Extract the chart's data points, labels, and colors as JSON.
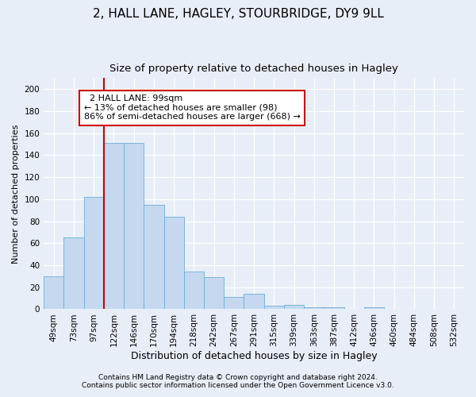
{
  "title1": "2, HALL LANE, HAGLEY, STOURBRIDGE, DY9 9LL",
  "title2": "Size of property relative to detached houses in Hagley",
  "xlabel": "Distribution of detached houses by size in Hagley",
  "ylabel": "Number of detached properties",
  "categories": [
    "49sqm",
    "73sqm",
    "97sqm",
    "122sqm",
    "146sqm",
    "170sqm",
    "194sqm",
    "218sqm",
    "242sqm",
    "267sqm",
    "291sqm",
    "315sqm",
    "339sqm",
    "363sqm",
    "387sqm",
    "412sqm",
    "436sqm",
    "460sqm",
    "484sqm",
    "508sqm",
    "532sqm"
  ],
  "values": [
    30,
    65,
    102,
    151,
    151,
    95,
    84,
    34,
    29,
    11,
    14,
    3,
    4,
    2,
    2,
    0,
    2,
    0,
    0,
    0,
    0
  ],
  "bar_color": "#c5d8f0",
  "bar_edge_color": "#6baed6",
  "vline_x_index": 2,
  "vline_color": "#cc0000",
  "annotation_text": "  2 HALL LANE: 99sqm\n← 13% of detached houses are smaller (98)\n86% of semi-detached houses are larger (668) →",
  "annotation_box_color": "#ffffff",
  "annotation_box_edge": "#cc0000",
  "ylim": [
    0,
    210
  ],
  "yticks": [
    0,
    20,
    40,
    60,
    80,
    100,
    120,
    140,
    160,
    180,
    200
  ],
  "footnote1": "Contains HM Land Registry data © Crown copyright and database right 2024.",
  "footnote2": "Contains public sector information licensed under the Open Government Licence v3.0.",
  "background_color": "#e8eef7",
  "plot_bg_color": "#e8eef7",
  "title1_fontsize": 11,
  "title2_fontsize": 9.5,
  "xlabel_fontsize": 9,
  "ylabel_fontsize": 8,
  "tick_fontsize": 7.5,
  "annotation_fontsize": 8,
  "footnote_fontsize": 6.5
}
